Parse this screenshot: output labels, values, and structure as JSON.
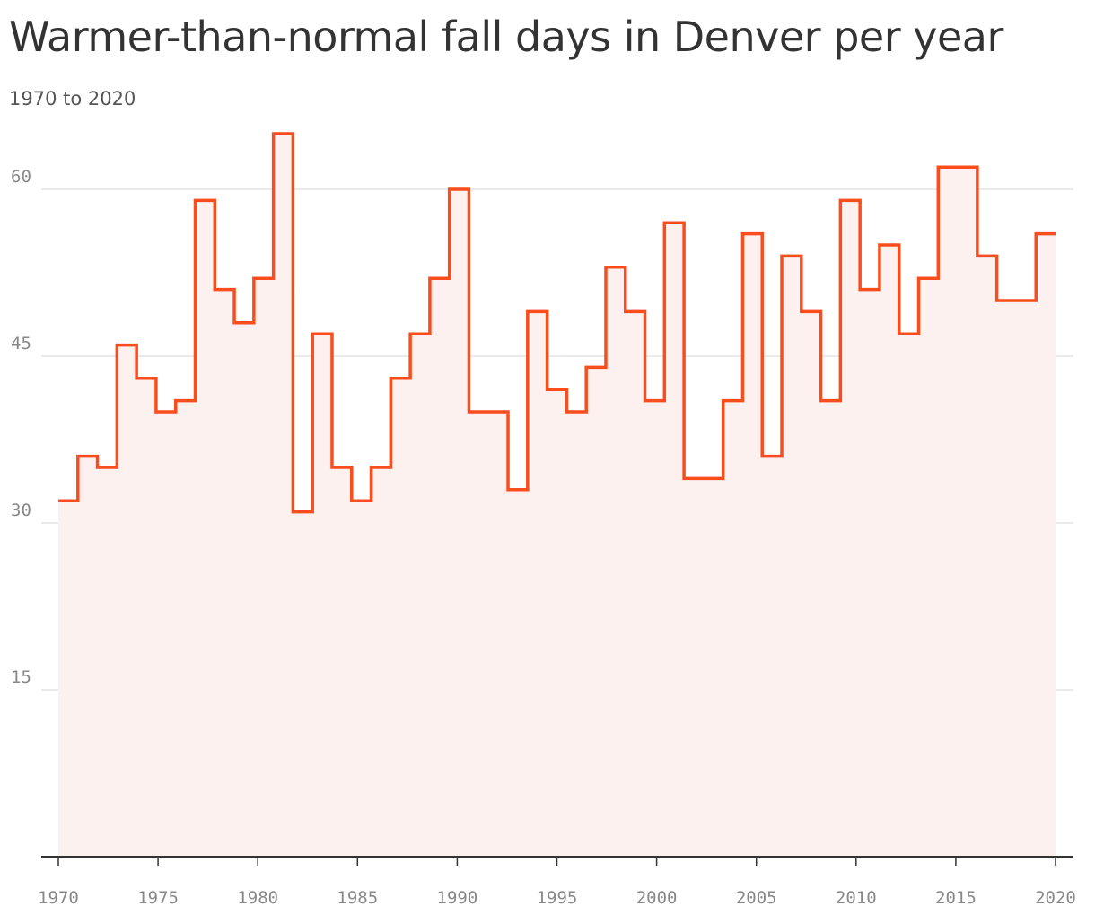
{
  "title": "Warmer-than-normal fall days in Denver per year",
  "subtitle": "1970 to 2020",
  "colors": {
    "line": "#fa4d1d",
    "area": "#fdf1f0",
    "grid": "#e3e3e3",
    "axis": "#333333",
    "tick_text": "#888888",
    "title_text": "#333333"
  },
  "chart_data": {
    "type": "area",
    "step": true,
    "title": "Warmer-than-normal fall days in Denver per year",
    "subtitle": "1970 to 2020",
    "xlabel": "",
    "ylabel": "",
    "x": [
      1970,
      1971,
      1972,
      1973,
      1974,
      1975,
      1976,
      1977,
      1978,
      1979,
      1980,
      1981,
      1982,
      1983,
      1984,
      1985,
      1986,
      1987,
      1988,
      1989,
      1990,
      1991,
      1992,
      1993,
      1994,
      1995,
      1996,
      1997,
      1998,
      1999,
      2000,
      2001,
      2002,
      2003,
      2004,
      2005,
      2006,
      2007,
      2008,
      2009,
      2010,
      2011,
      2012,
      2013,
      2014,
      2015,
      2016,
      2017,
      2018,
      2019,
      2020
    ],
    "values": [
      32,
      36,
      35,
      46,
      43,
      40,
      41,
      59,
      51,
      48,
      52,
      65,
      31,
      47,
      35,
      32,
      35,
      43,
      47,
      52,
      60,
      40,
      40,
      33,
      49,
      42,
      40,
      44,
      53,
      49,
      41,
      57,
      34,
      34,
      41,
      56,
      36,
      54,
      49,
      41,
      59,
      51,
      55,
      47,
      52,
      62,
      62,
      54,
      50,
      50,
      56
    ],
    "xlim": [
      1970,
      2020
    ],
    "ylim": [
      0,
      65
    ],
    "y_ticks": [
      "15",
      "30",
      "45",
      "60"
    ],
    "x_ticks": [
      "1970",
      "1975",
      "1980",
      "1985",
      "1990",
      "1995",
      "2000",
      "2005",
      "2010",
      "2015",
      "2020"
    ],
    "grid": true,
    "legend": "none"
  }
}
